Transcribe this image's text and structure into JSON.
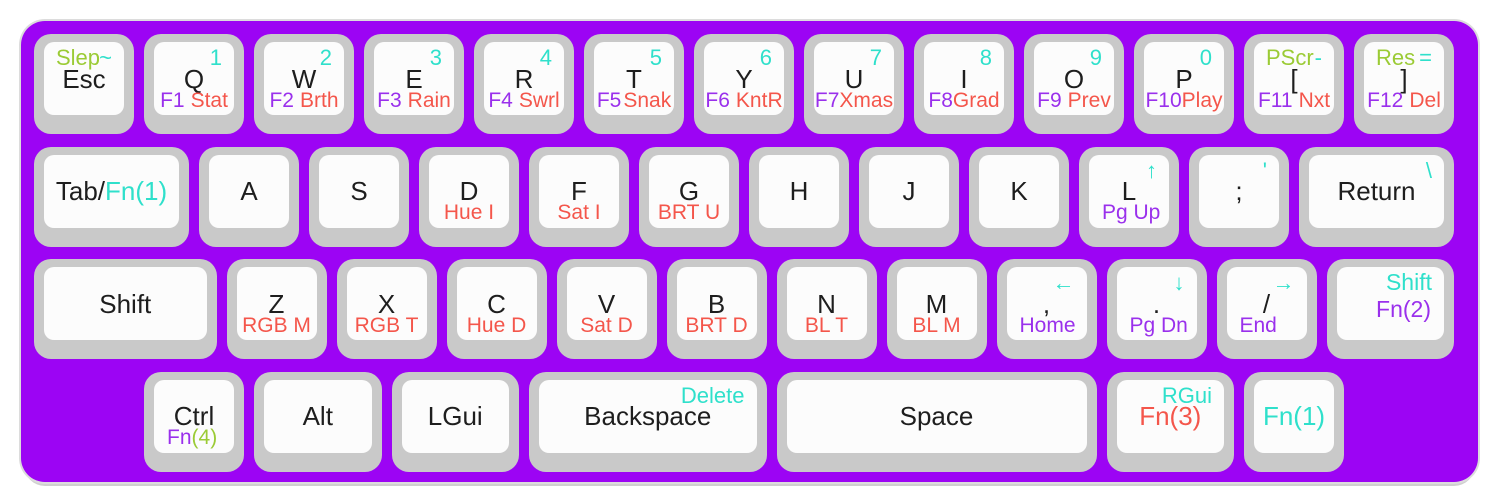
{
  "colors": {
    "board": "#9C04F4",
    "key_base": "#C9C9C9",
    "key_top": "#FCFCFC",
    "black": "#1E1E1E",
    "teal": "#2FE0CB",
    "red": "#F4564B",
    "purple": "#9A30EC",
    "green": "#9BCB35"
  },
  "keyboard": {
    "rows": [
      {
        "offset": 0,
        "keys": [
          {
            "name": "esc",
            "w": 1,
            "tl": {
              "t": "Slep",
              "c": "green"
            },
            "tr": {
              "t": "~",
              "c": "teal"
            },
            "main": [
              {
                "t": "Esc",
                "c": "black"
              }
            ]
          },
          {
            "name": "q",
            "w": 1,
            "tr": {
              "t": "1",
              "c": "teal"
            },
            "main": [
              {
                "t": "Q",
                "c": "black"
              }
            ],
            "bottom": [
              {
                "t": "F1",
                "c": "purple"
              },
              {
                "t": "Stat",
                "c": "red"
              }
            ]
          },
          {
            "name": "w",
            "w": 1,
            "tr": {
              "t": "2",
              "c": "teal"
            },
            "main": [
              {
                "t": "W",
                "c": "black"
              }
            ],
            "bottom": [
              {
                "t": "F2",
                "c": "purple"
              },
              {
                "t": "Brth",
                "c": "red"
              }
            ]
          },
          {
            "name": "e",
            "w": 1,
            "tr": {
              "t": "3",
              "c": "teal"
            },
            "main": [
              {
                "t": "E",
                "c": "black"
              }
            ],
            "bottom": [
              {
                "t": "F3",
                "c": "purple"
              },
              {
                "t": "Rain",
                "c": "red"
              }
            ]
          },
          {
            "name": "r",
            "w": 1,
            "tr": {
              "t": "4",
              "c": "teal"
            },
            "main": [
              {
                "t": "R",
                "c": "black"
              }
            ],
            "bottom": [
              {
                "t": "F4",
                "c": "purple"
              },
              {
                "t": "Swrl",
                "c": "red"
              }
            ]
          },
          {
            "name": "t",
            "w": 1,
            "tr": {
              "t": "5",
              "c": "teal"
            },
            "main": [
              {
                "t": "T",
                "c": "black"
              }
            ],
            "bottom": [
              {
                "t": "F5",
                "c": "purple"
              },
              {
                "t": "Snak",
                "c": "red"
              }
            ],
            "bgap": 2
          },
          {
            "name": "y",
            "w": 1,
            "tr": {
              "t": "6",
              "c": "teal"
            },
            "main": [
              {
                "t": "Y",
                "c": "black"
              }
            ],
            "bottom": [
              {
                "t": "F6",
                "c": "purple"
              },
              {
                "t": "KntR",
                "c": "red"
              }
            ]
          },
          {
            "name": "u",
            "w": 1,
            "tr": {
              "t": "7",
              "c": "teal"
            },
            "main": [
              {
                "t": "U",
                "c": "black"
              }
            ],
            "bottom": [
              {
                "t": "F7",
                "c": "purple"
              },
              {
                "t": "Xmas",
                "c": "red"
              }
            ],
            "bgap": 0
          },
          {
            "name": "i",
            "w": 1,
            "tr": {
              "t": "8",
              "c": "teal"
            },
            "main": [
              {
                "t": "I",
                "c": "black"
              }
            ],
            "bottom": [
              {
                "t": "F8",
                "c": "purple"
              },
              {
                "t": "Grad",
                "c": "red"
              }
            ],
            "bgap": 0
          },
          {
            "name": "o",
            "w": 1,
            "tr": {
              "t": "9",
              "c": "teal"
            },
            "main": [
              {
                "t": "O",
                "c": "black"
              }
            ],
            "bottom": [
              {
                "t": "F9",
                "c": "purple"
              },
              {
                "t": "Prev",
                "c": "red"
              }
            ]
          },
          {
            "name": "p",
            "w": 1,
            "tr": {
              "t": "0",
              "c": "teal"
            },
            "main": [
              {
                "t": "P",
                "c": "black"
              }
            ],
            "bottom": [
              {
                "t": "F10",
                "c": "purple"
              },
              {
                "t": "Play",
                "c": "red"
              }
            ],
            "bgap": 0
          },
          {
            "name": "lbracket",
            "w": 1,
            "tl": {
              "t": "PScr",
              "c": "green"
            },
            "tr": {
              "t": "-",
              "c": "teal"
            },
            "main": [
              {
                "t": "[",
                "c": "black"
              }
            ],
            "bottom": [
              {
                "t": "F11",
                "c": "purple"
              },
              {
                "t": "Nxt",
                "c": "red"
              }
            ]
          },
          {
            "name": "rbracket",
            "w": 1,
            "tl": {
              "t": "Res",
              "c": "green"
            },
            "tr": {
              "t": "=",
              "c": "teal"
            },
            "main": [
              {
                "t": "]",
                "c": "black"
              }
            ],
            "bottom": [
              {
                "t": "F12",
                "c": "purple"
              },
              {
                "t": "Del",
                "c": "red"
              }
            ]
          }
        ]
      },
      {
        "offset": 0,
        "keys": [
          {
            "name": "tab",
            "w": 1.5,
            "main": [
              {
                "t": "Tab/",
                "c": "black"
              },
              {
                "t": "Fn(1)",
                "c": "teal"
              }
            ]
          },
          {
            "name": "a",
            "w": 1,
            "main": [
              {
                "t": "A",
                "c": "black"
              }
            ]
          },
          {
            "name": "s",
            "w": 1,
            "main": [
              {
                "t": "S",
                "c": "black"
              }
            ]
          },
          {
            "name": "d",
            "w": 1,
            "main": [
              {
                "t": "D",
                "c": "black"
              }
            ],
            "bottom": [
              {
                "t": "Hue I",
                "c": "red"
              }
            ]
          },
          {
            "name": "f",
            "w": 1,
            "main": [
              {
                "t": "F",
                "c": "black"
              }
            ],
            "bottom": [
              {
                "t": "Sat I",
                "c": "red"
              }
            ]
          },
          {
            "name": "g",
            "w": 1,
            "main": [
              {
                "t": "G",
                "c": "black"
              }
            ],
            "bottom": [
              {
                "t": "BRT U",
                "c": "red"
              }
            ]
          },
          {
            "name": "h",
            "w": 1,
            "main": [
              {
                "t": "H",
                "c": "black"
              }
            ]
          },
          {
            "name": "j",
            "w": 1,
            "main": [
              {
                "t": "J",
                "c": "black"
              }
            ]
          },
          {
            "name": "k",
            "w": 1,
            "main": [
              {
                "t": "K",
                "c": "black"
              }
            ]
          },
          {
            "name": "l",
            "w": 1,
            "tr": {
              "t": "↑",
              "c": "teal",
              "n": "up-arrow-icon"
            },
            "main": [
              {
                "t": "L",
                "c": "black"
              }
            ],
            "bottom": [
              {
                "t": "Pg Up",
                "c": "purple"
              }
            ],
            "balign": "left"
          },
          {
            "name": "semicolon",
            "w": 1,
            "tr": {
              "t": "'",
              "c": "teal"
            },
            "main": [
              {
                "t": ";",
                "c": "black"
              }
            ]
          },
          {
            "name": "return",
            "w": 1.5,
            "tr": {
              "t": "\\",
              "c": "teal"
            },
            "main": [
              {
                "t": "Return",
                "c": "black"
              }
            ]
          }
        ]
      },
      {
        "offset": 0,
        "keys": [
          {
            "name": "lshift",
            "w": 1.75,
            "main": [
              {
                "t": "Shift",
                "c": "black"
              }
            ]
          },
          {
            "name": "z",
            "w": 1,
            "main": [
              {
                "t": "Z",
                "c": "black"
              }
            ],
            "bottom": [
              {
                "t": "RGB M",
                "c": "red"
              }
            ]
          },
          {
            "name": "x",
            "w": 1,
            "main": [
              {
                "t": "X",
                "c": "black"
              }
            ],
            "bottom": [
              {
                "t": "RGB T",
                "c": "red"
              }
            ]
          },
          {
            "name": "c",
            "w": 1,
            "main": [
              {
                "t": "C",
                "c": "black"
              }
            ],
            "bottom": [
              {
                "t": "Hue D",
                "c": "red"
              }
            ]
          },
          {
            "name": "v",
            "w": 1,
            "main": [
              {
                "t": "V",
                "c": "black"
              }
            ],
            "bottom": [
              {
                "t": "Sat D",
                "c": "red"
              }
            ]
          },
          {
            "name": "b",
            "w": 1,
            "main": [
              {
                "t": "B",
                "c": "black"
              }
            ],
            "bottom": [
              {
                "t": "BRT D",
                "c": "red"
              }
            ]
          },
          {
            "name": "n",
            "w": 1,
            "main": [
              {
                "t": "N",
                "c": "black"
              }
            ],
            "bottom": [
              {
                "t": "BL T",
                "c": "red"
              }
            ]
          },
          {
            "name": "m",
            "w": 1,
            "main": [
              {
                "t": "M",
                "c": "black"
              }
            ],
            "bottom": [
              {
                "t": "BL M",
                "c": "red"
              }
            ]
          },
          {
            "name": "comma",
            "w": 1,
            "tr": {
              "t": "←",
              "c": "teal",
              "n": "left-arrow-icon"
            },
            "main": [
              {
                "t": ",",
                "c": "black"
              }
            ],
            "bottom": [
              {
                "t": "Home",
                "c": "purple"
              }
            ],
            "balign": "left"
          },
          {
            "name": "period",
            "w": 1,
            "tr": {
              "t": "↓",
              "c": "teal",
              "n": "down-arrow-icon"
            },
            "main": [
              {
                "t": ".",
                "c": "black"
              }
            ],
            "bottom": [
              {
                "t": "Pg Dn",
                "c": "purple"
              }
            ],
            "balign": "left"
          },
          {
            "name": "slash",
            "w": 1,
            "tr": {
              "t": "→",
              "c": "teal",
              "n": "right-arrow-icon"
            },
            "main": [
              {
                "t": "/",
                "c": "black"
              }
            ],
            "bottom": [
              {
                "t": "End",
                "c": "purple"
              }
            ],
            "balign": "left"
          },
          {
            "name": "rshift",
            "w": 1.25,
            "tr": {
              "t": "Shift",
              "c": "teal",
              "big": true
            },
            "tr2": {
              "t": "Fn(2)",
              "c": "purple"
            }
          }
        ]
      },
      {
        "offset": 1,
        "keys": [
          {
            "name": "ctrl",
            "w": 1,
            "main": [
              {
                "t": "Ctrl",
                "c": "black"
              }
            ],
            "bottom": [
              {
                "t": "Fn",
                "c": "purple"
              },
              {
                "t": "(4)",
                "c": "green"
              }
            ],
            "bgap": 0,
            "balign": "left"
          },
          {
            "name": "alt",
            "w": 1.25,
            "main": [
              {
                "t": "Alt",
                "c": "black"
              }
            ]
          },
          {
            "name": "lgui",
            "w": 1.25,
            "main": [
              {
                "t": "LGui",
                "c": "black"
              }
            ]
          },
          {
            "name": "backspace",
            "w": 2.25,
            "tr": {
              "t": "Delete",
              "c": "teal"
            },
            "main": [
              {
                "t": "Backspace",
                "c": "black"
              }
            ]
          },
          {
            "name": "space",
            "w": 3,
            "main": [
              {
                "t": "Space",
                "c": "black"
              }
            ]
          },
          {
            "name": "fn3",
            "w": 1.25,
            "tr": {
              "t": "RGui",
              "c": "teal"
            },
            "main": [
              {
                "t": "Fn(3)",
                "c": "red"
              }
            ]
          },
          {
            "name": "fn1",
            "w": 1,
            "main": [
              {
                "t": "Fn(1)",
                "c": "teal"
              }
            ]
          }
        ]
      }
    ]
  }
}
